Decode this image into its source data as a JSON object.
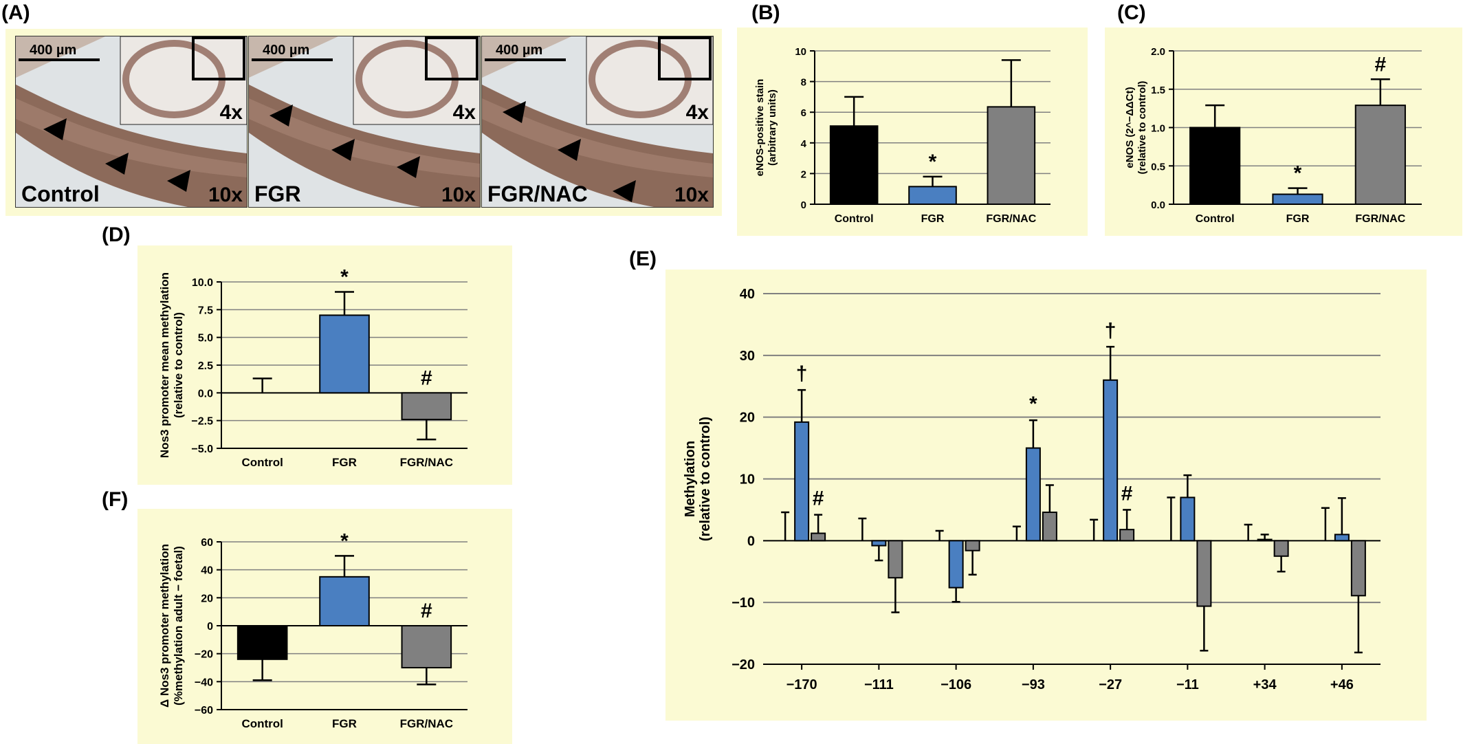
{
  "panels": {
    "A": {
      "letter": "(A)",
      "images": [
        {
          "scale_bar": "400 µm",
          "inset_mag": "4x",
          "main_mag": "10x",
          "label": "Control"
        },
        {
          "scale_bar": "400 µm",
          "inset_mag": "4x",
          "main_mag": "10x",
          "label": "FGR"
        },
        {
          "scale_bar": "400 µm",
          "inset_mag": "4x",
          "main_mag": "10x",
          "label": "FGR/NAC"
        }
      ]
    },
    "B": {
      "letter": "(B)"
    },
    "C": {
      "letter": "(C)"
    },
    "D": {
      "letter": "(D)"
    },
    "E": {
      "letter": "(E)"
    },
    "F": {
      "letter": "(F)"
    }
  },
  "colors": {
    "control": "#000000",
    "fgr": "#4a7fc1",
    "fgr_nac": "#808080",
    "panel_bg": "#fbfad3",
    "grid": "#808080"
  },
  "chart_data": [
    {
      "id": "B",
      "type": "bar",
      "categories": [
        "Control",
        "FGR",
        "FGR/NAC"
      ],
      "values": [
        5.1,
        1.15,
        6.35
      ],
      "errors": [
        1.9,
        0.65,
        3.05
      ],
      "annotations": [
        "",
        "*",
        ""
      ],
      "ylabel": "eNOS-positive stain\n(arbitrary units)",
      "ylim": [
        0,
        10
      ],
      "yticks": [
        0,
        2,
        4,
        6,
        8,
        10
      ],
      "ytick_labels": [
        "0",
        "2",
        "4",
        "6",
        "8",
        "10"
      ],
      "grid": true
    },
    {
      "id": "C",
      "type": "bar",
      "categories": [
        "Control",
        "FGR",
        "FGR/NAC"
      ],
      "values": [
        1.0,
        0.13,
        1.29
      ],
      "errors": [
        0.29,
        0.08,
        0.34
      ],
      "annotations": [
        "",
        "*",
        "#"
      ],
      "ylabel": "eNOS (2^−ΔΔCt)\n(relative to control)",
      "ylim": [
        0,
        2.0
      ],
      "yticks": [
        0,
        0.5,
        1.0,
        1.5,
        2.0
      ],
      "ytick_labels": [
        "0.0",
        "0.5",
        "1.0",
        "1.5",
        "2.0"
      ],
      "grid": true
    },
    {
      "id": "D",
      "type": "bar",
      "categories": [
        "Control",
        "FGR",
        "FGR/NAC"
      ],
      "values": [
        0.0,
        7.0,
        -2.4
      ],
      "errors": [
        1.3,
        2.1,
        1.8
      ],
      "annotations": [
        "",
        "*",
        "#"
      ],
      "ylabel": "Nos3 promoter mean methylation\n(relative to control)",
      "ylim": [
        -5.0,
        10.0
      ],
      "yticks": [
        -5,
        -2.5,
        0,
        2.5,
        5,
        7.5,
        10
      ],
      "ytick_labels": [
        "−5.0",
        "−2.5",
        "0.0",
        "2.5",
        "5.0",
        "7.5",
        "10.0"
      ],
      "grid": true
    },
    {
      "id": "F",
      "type": "bar",
      "categories": [
        "Control",
        "FGR",
        "FGR/NAC"
      ],
      "values": [
        -24,
        35,
        -30
      ],
      "errors": [
        15,
        15,
        12
      ],
      "annotations": [
        "",
        "*",
        "#"
      ],
      "ylabel": "Δ Nos3 promoter methylation\n(%methylation adult − foetal)",
      "ylim": [
        -60,
        60
      ],
      "yticks": [
        -60,
        -40,
        -20,
        0,
        20,
        40,
        60
      ],
      "ytick_labels": [
        "−60",
        "−40",
        "−20",
        "0",
        "20",
        "40",
        "60"
      ],
      "grid": true
    },
    {
      "id": "E",
      "type": "bar",
      "categories": [
        "−170",
        "−111",
        "−106",
        "−93",
        "−27",
        "−11",
        "+34",
        "+46"
      ],
      "series": [
        {
          "values": [
            0,
            0,
            0,
            0,
            0,
            0,
            0,
            0
          ],
          "errors": [
            4.6,
            3.6,
            1.6,
            2.3,
            3.4,
            7.0,
            2.6,
            5.3
          ]
        },
        {
          "values": [
            19.2,
            -0.8,
            -7.6,
            15.0,
            26.0,
            7.0,
            0.2,
            1.0
          ],
          "errors": [
            5.2,
            2.4,
            2.3,
            4.5,
            5.4,
            3.6,
            0.8,
            5.9
          ]
        },
        {
          "values": [
            1.2,
            -6.0,
            -1.6,
            4.6,
            1.8,
            -10.6,
            -2.5,
            -8.9
          ],
          "errors": [
            3.0,
            5.6,
            3.9,
            4.4,
            3.2,
            7.2,
            2.5,
            9.2
          ]
        }
      ],
      "annotations": [
        {
          "category": 0,
          "series": 1,
          "text": "†"
        },
        {
          "category": 0,
          "series": 2,
          "text": "#"
        },
        {
          "category": 3,
          "series": 1,
          "text": "*"
        },
        {
          "category": 4,
          "series": 1,
          "text": "†"
        },
        {
          "category": 4,
          "series": 2,
          "text": "#"
        }
      ],
      "ylabel": "Methylation\n(relative to control)",
      "ylim": [
        -20,
        40
      ],
      "yticks": [
        -20,
        -10,
        0,
        10,
        20,
        30,
        40
      ],
      "ytick_labels": [
        "−20",
        "−10",
        "0",
        "10",
        "20",
        "30",
        "40"
      ],
      "grid": true
    }
  ]
}
